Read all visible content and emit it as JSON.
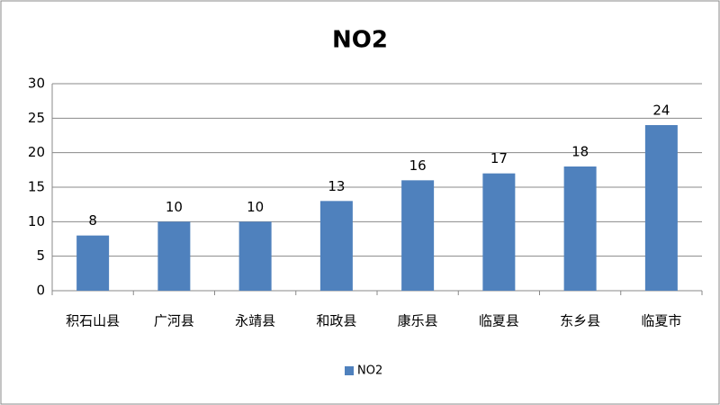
{
  "chart_data": {
    "type": "bar",
    "title": "NO2",
    "categories": [
      "积石山县",
      "广河县",
      "永靖县",
      "和政县",
      "康乐县",
      "临夏县",
      "东乡县",
      "临夏市"
    ],
    "series": [
      {
        "name": "NO2",
        "color": "#4f81bd",
        "values": [
          8,
          10,
          10,
          13,
          16,
          17,
          18,
          24
        ]
      }
    ],
    "ylim": [
      0,
      30
    ],
    "yticks": [
      0,
      5,
      10,
      15,
      20,
      25,
      30
    ],
    "grid": true,
    "legend": "bottom"
  }
}
